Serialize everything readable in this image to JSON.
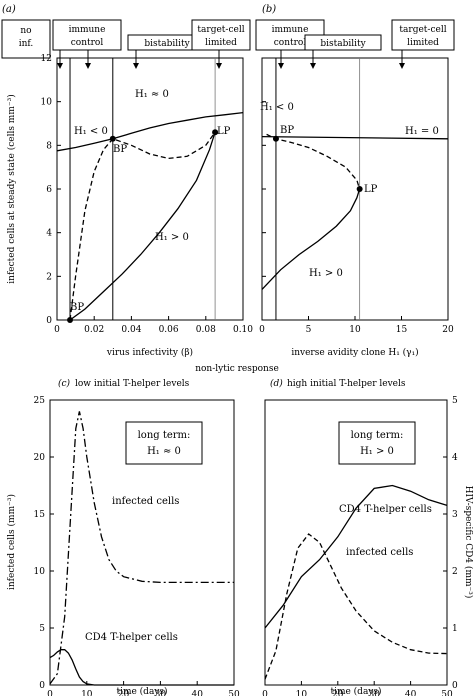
{
  "chart_data": [
    {
      "panel": "(a)",
      "type": "line",
      "xlabel": "virus infectivity (β)",
      "ylabel": "infected cells at steady state (cells mm⁻³)",
      "xlim": [
        0,
        0.1
      ],
      "ylim": [
        0,
        12
      ],
      "xticks": [
        "0",
        "0.02",
        "0.04",
        "0.06",
        "0.08",
        "0.10"
      ],
      "yticks": [
        "0",
        "2",
        "4",
        "6",
        "8",
        "10",
        "12"
      ],
      "regions": [
        {
          "label": "no inf."
        },
        {
          "label": "immune control"
        },
        {
          "label": "bistability"
        },
        {
          "label": "target-cell limited"
        }
      ],
      "region_boundaries": [
        0.007,
        0.03,
        0.085
      ],
      "branch_labels": [
        "H₁ ≈ 0",
        "H₁ < 0",
        "H₁ > 0"
      ],
      "points": [
        {
          "label": "BP",
          "x": 0.007,
          "y": 0
        },
        {
          "label": "BP",
          "x": 0.03,
          "y": 8.3
        },
        {
          "label": "LP",
          "x": 0.085,
          "y": 8.6
        }
      ],
      "series": [
        {
          "style": "solid",
          "x": [
            0,
            0.01,
            0.02,
            0.03,
            0.04,
            0.05,
            0.06,
            0.07,
            0.08,
            0.09,
            0.1
          ],
          "y": [
            7.75,
            7.9,
            8.1,
            8.3,
            8.55,
            8.8,
            9.0,
            9.15,
            9.3,
            9.4,
            9.5
          ]
        },
        {
          "style": "dashed",
          "x": [
            0.007,
            0.01,
            0.015,
            0.02,
            0.025,
            0.03,
            0.04,
            0.05,
            0.06,
            0.07,
            0.08,
            0.085
          ],
          "y": [
            0,
            2.0,
            5.0,
            6.8,
            7.8,
            8.3,
            8.0,
            7.6,
            7.4,
            7.5,
            8.0,
            8.6
          ]
        },
        {
          "style": "solid",
          "x": [
            0.007,
            0.015,
            0.025,
            0.035,
            0.045,
            0.055,
            0.065,
            0.075,
            0.082,
            0.085
          ],
          "y": [
            0,
            0.5,
            1.3,
            2.1,
            3.0,
            4.0,
            5.1,
            6.4,
            7.8,
            8.6
          ]
        }
      ]
    },
    {
      "panel": "(b)",
      "type": "line",
      "xlabel": "inverse avidity clone H₁ (γ₁)",
      "xlim": [
        0,
        20
      ],
      "ylim": [
        0,
        12
      ],
      "xticks": [
        "0",
        "5",
        "10",
        "15",
        "20"
      ],
      "regions": [
        {
          "label": "immune control"
        },
        {
          "label": "bistability"
        },
        {
          "label": "target-cell limited"
        }
      ],
      "region_boundaries": [
        1.5,
        10.5
      ],
      "branch_labels": [
        "H₁ < 0",
        "H₁ = 0",
        "H₁ > 0"
      ],
      "points": [
        {
          "label": "BP",
          "x": 1.5,
          "y": 8.3
        },
        {
          "label": "LP",
          "x": 10.5,
          "y": 6.0
        }
      ],
      "series": [
        {
          "style": "solid",
          "x": [
            0,
            20
          ],
          "y": [
            8.4,
            8.3
          ]
        },
        {
          "style": "dashed",
          "x": [
            0.5,
            1.5,
            3,
            5,
            7,
            9,
            10.2,
            10.5
          ],
          "y": [
            8.5,
            8.3,
            8.15,
            7.9,
            7.5,
            7.0,
            6.4,
            6.0
          ]
        },
        {
          "style": "solid",
          "x": [
            0,
            2,
            4,
            6,
            8,
            9.5,
            10.2,
            10.5
          ],
          "y": [
            1.4,
            2.3,
            3.0,
            3.6,
            4.3,
            5.0,
            5.6,
            6.0
          ]
        }
      ]
    },
    {
      "panel": "(c)",
      "type": "line",
      "title": "low initial T-helper levels",
      "xlabel": "time (days)",
      "ylabel": "infected cells (mm⁻³)",
      "xlim": [
        0,
        50
      ],
      "ylim": [
        0,
        25
      ],
      "xticks": [
        "0",
        "10",
        "20",
        "30",
        "40",
        "50"
      ],
      "yticks": [
        "0",
        "5",
        "10",
        "15",
        "20",
        "25"
      ],
      "box": [
        "long term:",
        "H₁ ≈ 0"
      ],
      "series": [
        {
          "name": "infected cells",
          "style": "dashdot",
          "x": [
            0,
            2,
            4,
            6,
            7,
            8,
            9,
            10,
            12,
            14,
            16,
            18,
            20,
            25,
            30,
            40,
            50
          ],
          "y": [
            0.1,
            1,
            6,
            17,
            22.5,
            24,
            22.5,
            20,
            16,
            13,
            11,
            10,
            9.5,
            9.1,
            9,
            9,
            9
          ]
        },
        {
          "name": "CD4 T-helper cells",
          "style": "solid",
          "x": [
            0,
            1,
            2,
            3,
            4,
            5,
            6,
            7,
            8,
            9,
            10,
            12,
            15,
            20,
            30,
            50
          ],
          "y": [
            2.4,
            2.6,
            2.9,
            3.1,
            3.1,
            2.8,
            2.2,
            1.4,
            0.7,
            0.3,
            0.1,
            0,
            0,
            0,
            0,
            0
          ]
        }
      ]
    },
    {
      "panel": "(d)",
      "type": "line",
      "title": "high initial T-helper levels",
      "xlabel": "time (days)",
      "ylabel": "HIV-specific CD4 (mm⁻³)",
      "xlim": [
        0,
        50
      ],
      "ylim": [
        0,
        5
      ],
      "xticks": [
        "0",
        "10",
        "20",
        "30",
        "40",
        "50"
      ],
      "yticks": [
        "0",
        "1",
        "2",
        "3",
        "4",
        "5"
      ],
      "box": [
        "long term:",
        "H₁ > 0"
      ],
      "series": [
        {
          "name": "CD4 T-helper cells",
          "style": "solid",
          "x": [
            0,
            5,
            10,
            15,
            20,
            25,
            30,
            35,
            40,
            45,
            50
          ],
          "y": [
            1.0,
            1.4,
            1.9,
            2.2,
            2.6,
            3.1,
            3.45,
            3.5,
            3.4,
            3.25,
            3.15
          ]
        },
        {
          "name": "infected cells",
          "style": "dashed",
          "x": [
            0,
            3,
            6,
            9,
            12,
            15,
            18,
            21,
            25,
            30,
            35,
            40,
            45,
            50
          ],
          "y": [
            0.1,
            0.6,
            1.6,
            2.4,
            2.65,
            2.5,
            2.1,
            1.7,
            1.3,
            0.95,
            0.75,
            0.62,
            0.56,
            0.55
          ]
        }
      ]
    }
  ],
  "labels": {
    "shared_xlabel": "non-lytic response",
    "panel_a": "(a)",
    "panel_b": "(b)",
    "panel_c": "(c)",
    "panel_d": "(d)",
    "a_region_no_inf_1": "no",
    "a_region_no_inf_2": "inf.",
    "a_region_immune_1": "immune",
    "a_region_immune_2": "control",
    "a_region_bistability": "bistability",
    "a_region_target_1": "target-cell",
    "a_region_target_2": "limited",
    "b_region_immune_1": "immune",
    "b_region_immune_2": "control",
    "b_region_bistability": "bistability",
    "b_region_target_1": "target-cell",
    "b_region_target_2": "limited",
    "a_h_zero": "H₁ ≈ 0",
    "a_h_neg": "H₁ < 0",
    "a_h_pos": "H₁ > 0",
    "a_bp_top": "BP",
    "a_bp_bottom": "BP",
    "a_lp": "LP",
    "b_h_neg": "H₁ < 0",
    "b_h_zero": "H₁ = 0",
    "b_h_pos": "H₁ > 0",
    "b_bp": "BP",
    "b_lp": "LP",
    "c_title": "low initial T-helper levels",
    "c_box_1": "long term:",
    "c_box_2": "H₁ ≈ 0",
    "c_infected": "infected cells",
    "c_cd4": "CD4 T-helper cells",
    "d_title": "high initial T-helper levels",
    "d_box_1": "long term:",
    "d_box_2": "H₁ > 0",
    "d_cd4": "CD4 T-helper cells",
    "d_infected": "infected cells"
  }
}
